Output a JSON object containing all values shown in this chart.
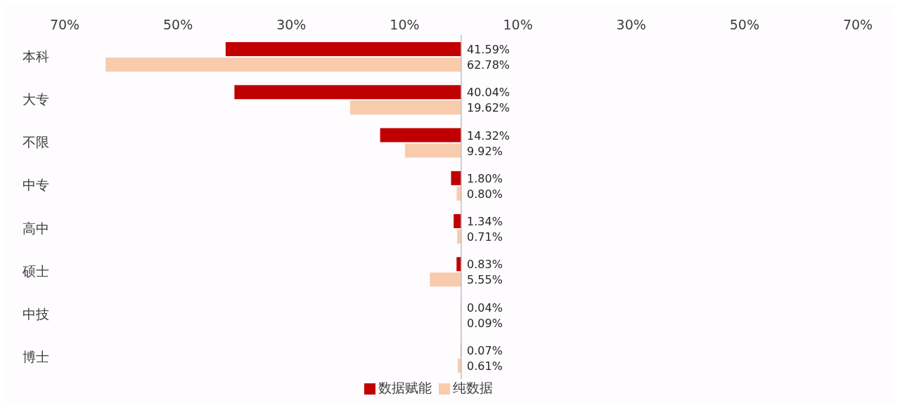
{
  "chart_data": {
    "type": "bar",
    "orientation": "horizontal",
    "categories": [
      "本科",
      "大专",
      "不限",
      "中专",
      "高中",
      "硕士",
      "中技",
      "博士"
    ],
    "series": [
      {
        "name": "数据赋能",
        "color": "#c00000",
        "values": [
          41.59,
          40.04,
          14.32,
          1.8,
          1.34,
          0.83,
          0.04,
          0.07
        ],
        "value_labels": [
          "41.59%",
          "40.04%",
          "14.32%",
          "1.80%",
          "1.34%",
          "0.83%",
          "0.04%",
          "0.07%"
        ]
      },
      {
        "name": "纯数据",
        "color": "#f8cbad",
        "values": [
          62.78,
          19.62,
          9.92,
          0.8,
          0.71,
          5.55,
          0.09,
          0.61
        ],
        "value_labels": [
          "62.78%",
          "19.62%",
          "9.92%",
          "0.80%",
          "0.71%",
          "5.55%",
          "0.09%",
          "0.61%"
        ]
      }
    ],
    "xlim": [
      70,
      -70
    ],
    "xticks": [
      {
        "value": 70,
        "label": "70%"
      },
      {
        "value": 50,
        "label": "50%"
      },
      {
        "value": 30,
        "label": "30%"
      },
      {
        "value": 10,
        "label": "10%"
      },
      {
        "value": -10,
        "label": "10%"
      },
      {
        "value": -30,
        "label": "30%"
      },
      {
        "value": -50,
        "label": "50%"
      },
      {
        "value": -70,
        "label": "70%"
      }
    ],
    "ref_lines": [
      {
        "axis": "x",
        "value": 0,
        "color": "#bfbfbf"
      }
    ],
    "grid": false,
    "legend": "bottom"
  }
}
